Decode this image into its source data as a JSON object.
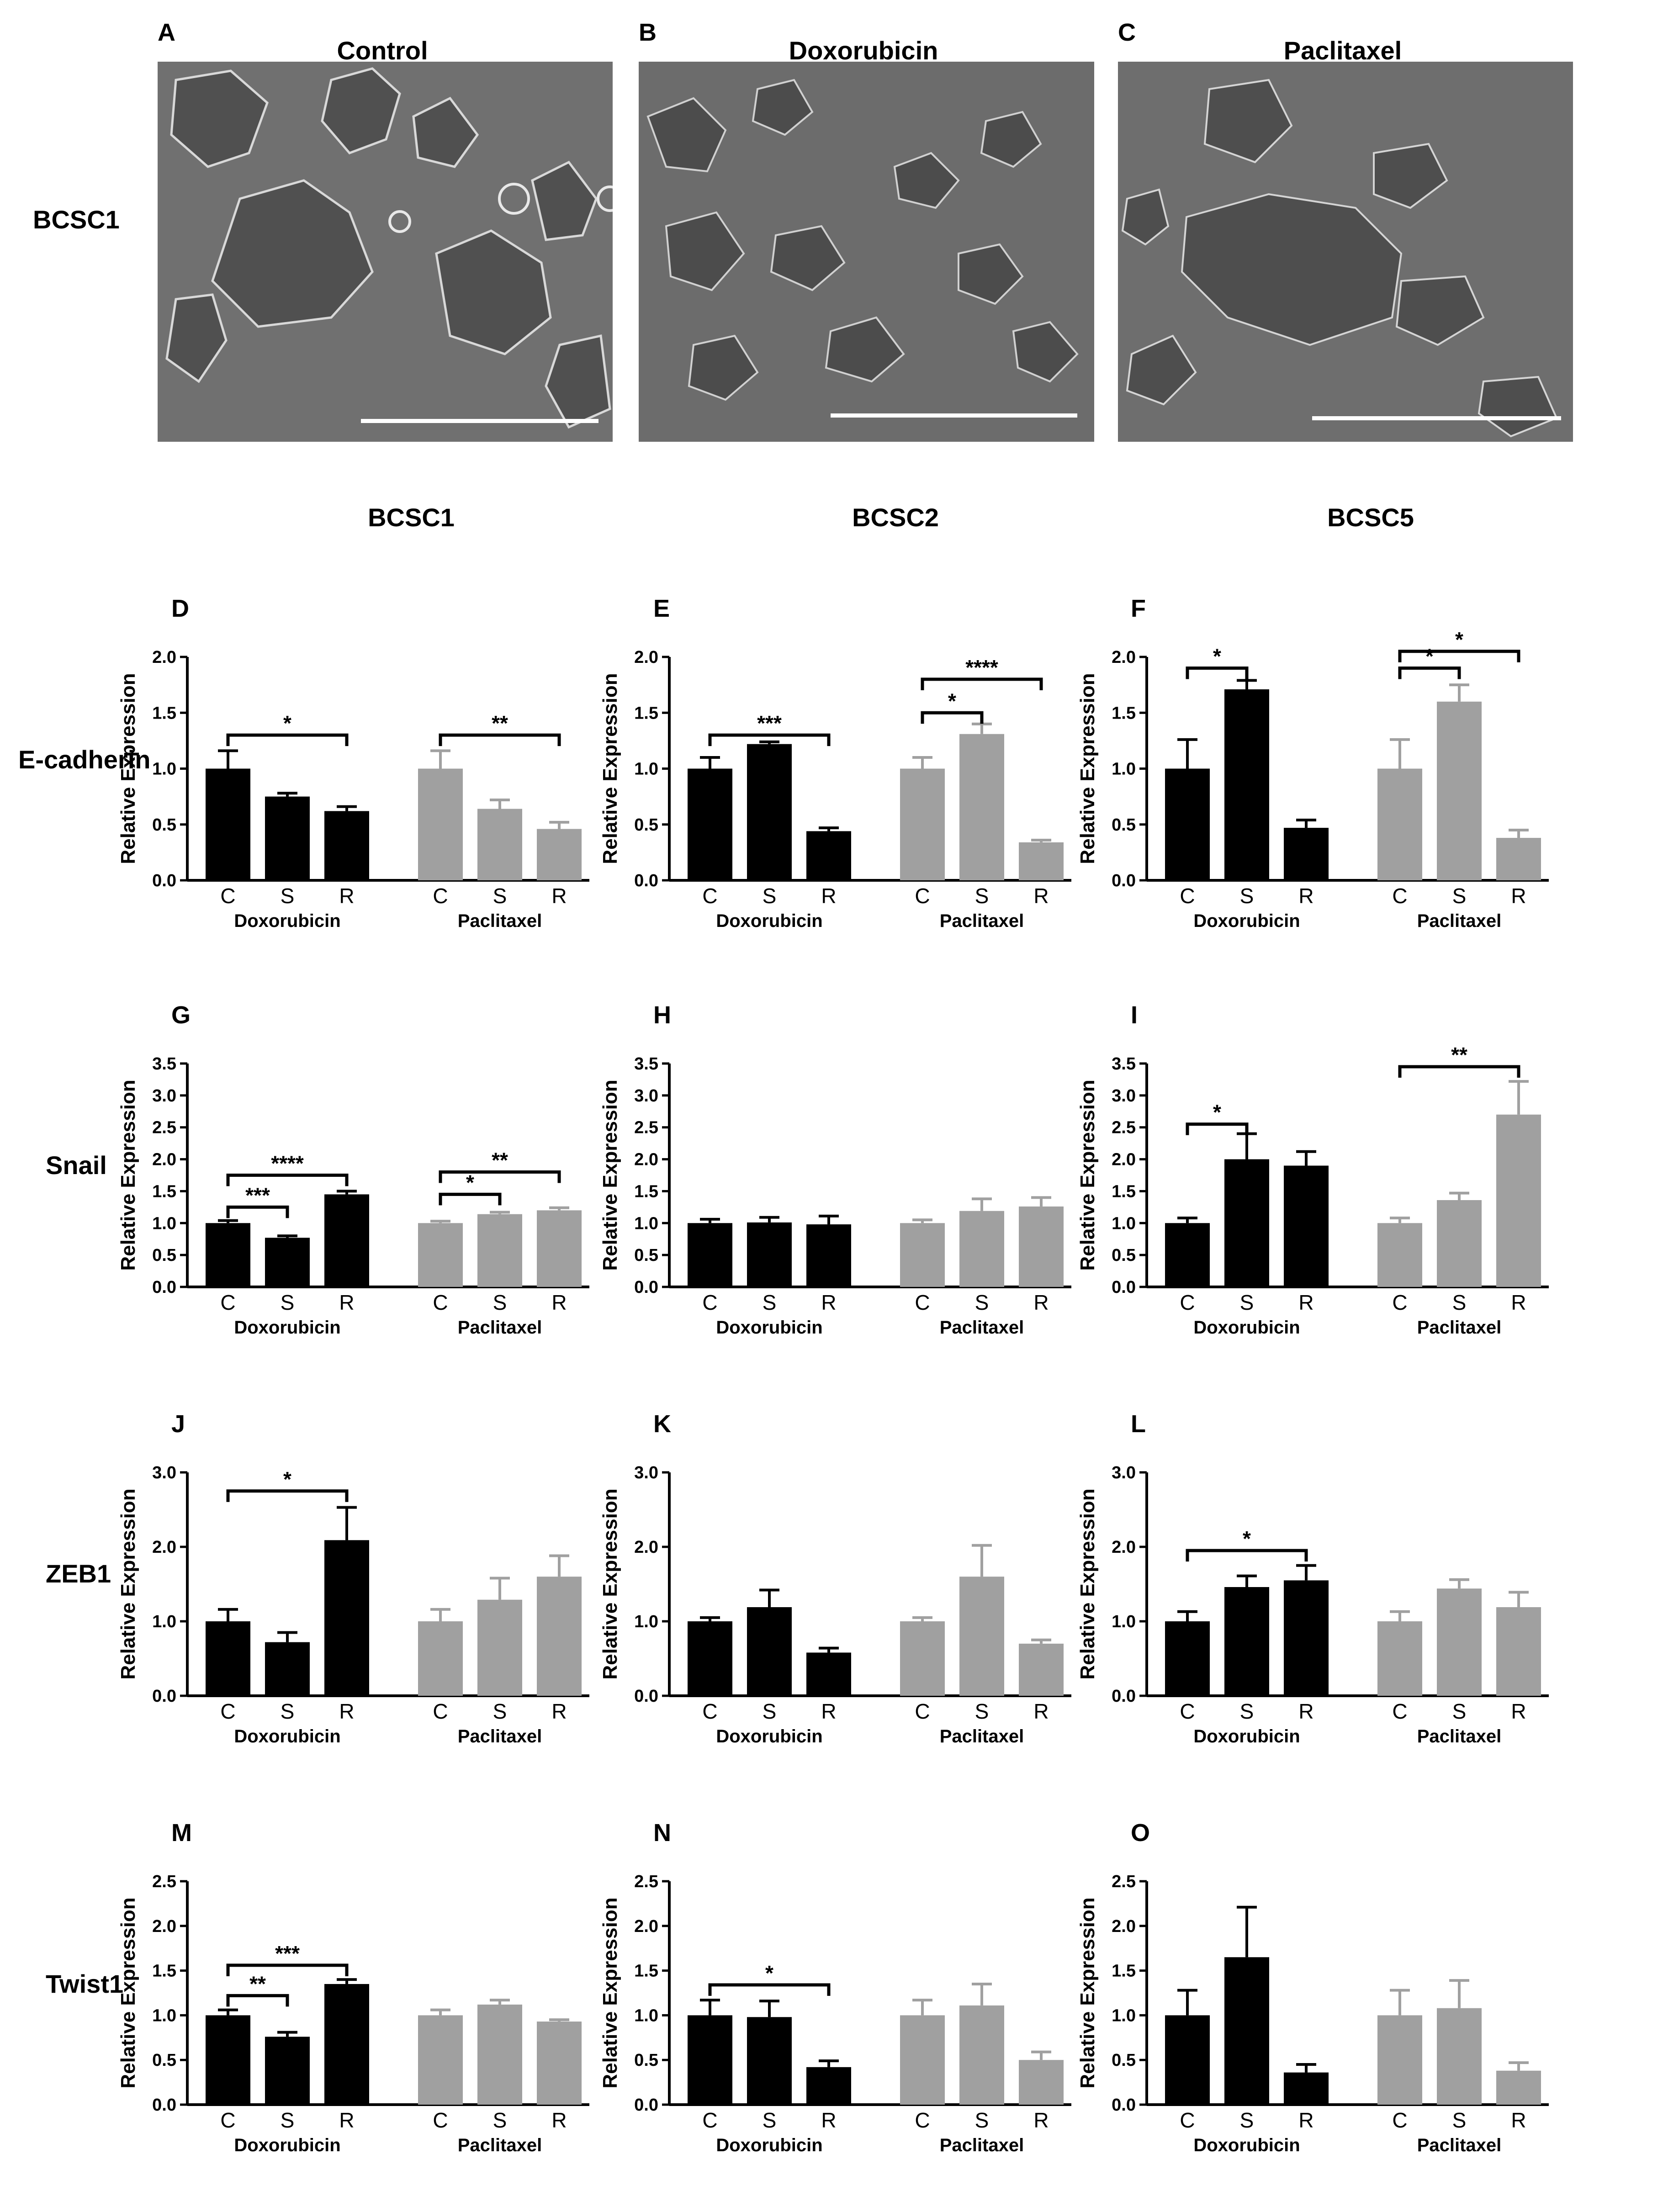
{
  "figure": {
    "micrographs": {
      "panels": [
        {
          "letter": "A",
          "title": "Control"
        },
        {
          "letter": "B",
          "title": "Doxorubicin"
        },
        {
          "letter": "C",
          "title": "Paclitaxel"
        }
      ],
      "row_label": "BCSC1"
    },
    "column_titles": [
      "BCSC1",
      "BCSC2",
      "BCSC5"
    ],
    "row_labels": [
      "E-cadherin",
      "Snail",
      "ZEB1",
      "Twist1"
    ]
  },
  "colors": {
    "doxorubicin": "#000000",
    "paclitaxel": "#a0a0a0",
    "micrograph_bg": "#6f6f6f",
    "scale_bar": "#ffffff"
  },
  "chart_data": [
    {
      "letter": "D",
      "type": "bar",
      "ylabel": "Relative Expression",
      "ylim": [
        0,
        2.0
      ],
      "yticks": [
        "0.0",
        "0.5",
        "1.0",
        "1.5",
        "2.0"
      ],
      "categories": [
        "C",
        "S",
        "R"
      ],
      "series": [
        {
          "name": "Doxorubicin",
          "values": [
            1.0,
            0.75,
            0.62
          ],
          "errors": [
            0.16,
            0.03,
            0.04
          ]
        },
        {
          "name": "Paclitaxel",
          "values": [
            1.0,
            0.64,
            0.46
          ],
          "errors": [
            0.16,
            0.08,
            0.06
          ]
        }
      ],
      "brackets": [
        {
          "series": 0,
          "from": 0,
          "to": 2,
          "label": "*",
          "level": 1.3
        },
        {
          "series": 1,
          "from": 0,
          "to": 2,
          "label": "**",
          "level": 1.3
        }
      ]
    },
    {
      "letter": "E",
      "type": "bar",
      "ylabel": "Relative Expression",
      "ylim": [
        0,
        2.0
      ],
      "yticks": [
        "0.0",
        "0.5",
        "1.0",
        "1.5",
        "2.0"
      ],
      "categories": [
        "C",
        "S",
        "R"
      ],
      "series": [
        {
          "name": "Doxorubicin",
          "values": [
            1.0,
            1.22,
            0.44
          ],
          "errors": [
            0.1,
            0.02,
            0.03
          ]
        },
        {
          "name": "Paclitaxel",
          "values": [
            1.0,
            1.31,
            0.34
          ],
          "errors": [
            0.1,
            0.09,
            0.02
          ]
        }
      ],
      "brackets": [
        {
          "series": 0,
          "from": 0,
          "to": 2,
          "label": "***",
          "level": 1.3
        },
        {
          "series": 1,
          "from": 0,
          "to": 1,
          "label": "*",
          "level": 1.5
        },
        {
          "series": 1,
          "from": 0,
          "to": 2,
          "label": "****",
          "level": 1.8
        }
      ]
    },
    {
      "letter": "F",
      "type": "bar",
      "ylabel": "Relative Expression",
      "ylim": [
        0,
        2.0
      ],
      "yticks": [
        "0.0",
        "0.5",
        "1.0",
        "1.5",
        "2.0"
      ],
      "categories": [
        "C",
        "S",
        "R"
      ],
      "series": [
        {
          "name": "Doxorubicin",
          "values": [
            1.0,
            1.71,
            0.47
          ],
          "errors": [
            0.26,
            0.08,
            0.07
          ]
        },
        {
          "name": "Paclitaxel",
          "values": [
            1.0,
            1.6,
            0.38
          ],
          "errors": [
            0.26,
            0.15,
            0.07
          ]
        }
      ],
      "brackets": [
        {
          "series": 0,
          "from": 0,
          "to": 1,
          "label": "*",
          "level": 1.9
        },
        {
          "series": 1,
          "from": 0,
          "to": 1,
          "label": "*",
          "level": 1.9
        },
        {
          "series": 1,
          "from": 0,
          "to": 2,
          "label": "*",
          "level": 2.05
        }
      ]
    },
    {
      "letter": "G",
      "type": "bar",
      "ylabel": "Relative Expression",
      "ylim": [
        0,
        3.5
      ],
      "yticks": [
        "0.0",
        "0.5",
        "1.0",
        "1.5",
        "2.0",
        "2.5",
        "3.0",
        "3.5"
      ],
      "categories": [
        "C",
        "S",
        "R"
      ],
      "series": [
        {
          "name": "Doxorubicin",
          "values": [
            1.0,
            0.77,
            1.45
          ],
          "errors": [
            0.04,
            0.03,
            0.05
          ]
        },
        {
          "name": "Paclitaxel",
          "values": [
            1.0,
            1.14,
            1.2
          ],
          "errors": [
            0.03,
            0.03,
            0.04
          ]
        }
      ],
      "brackets": [
        {
          "series": 0,
          "from": 0,
          "to": 1,
          "label": "***",
          "level": 1.25
        },
        {
          "series": 0,
          "from": 0,
          "to": 2,
          "label": "****",
          "level": 1.75
        },
        {
          "series": 1,
          "from": 0,
          "to": 1,
          "label": "*",
          "level": 1.45
        },
        {
          "series": 1,
          "from": 0,
          "to": 2,
          "label": "**",
          "level": 1.8
        }
      ]
    },
    {
      "letter": "H",
      "type": "bar",
      "ylabel": "Relative Expression",
      "ylim": [
        0,
        3.5
      ],
      "yticks": [
        "0.0",
        "0.5",
        "1.0",
        "1.5",
        "2.0",
        "2.5",
        "3.0",
        "3.5"
      ],
      "categories": [
        "C",
        "S",
        "R"
      ],
      "series": [
        {
          "name": "Doxorubicin",
          "values": [
            1.0,
            1.01,
            0.98
          ],
          "errors": [
            0.06,
            0.08,
            0.13
          ]
        },
        {
          "name": "Paclitaxel",
          "values": [
            1.0,
            1.19,
            1.26
          ],
          "errors": [
            0.05,
            0.19,
            0.14
          ]
        }
      ],
      "brackets": []
    },
    {
      "letter": "I",
      "type": "bar",
      "ylabel": "Relative Expression",
      "ylim": [
        0,
        3.5
      ],
      "yticks": [
        "0.0",
        "0.5",
        "1.0",
        "1.5",
        "2.0",
        "2.5",
        "3.0",
        "3.5"
      ],
      "categories": [
        "C",
        "S",
        "R"
      ],
      "series": [
        {
          "name": "Doxorubicin",
          "values": [
            1.0,
            2.0,
            1.9
          ],
          "errors": [
            0.08,
            0.4,
            0.22
          ]
        },
        {
          "name": "Paclitaxel",
          "values": [
            1.0,
            1.36,
            2.7
          ],
          "errors": [
            0.08,
            0.11,
            0.52
          ]
        }
      ],
      "brackets": [
        {
          "series": 0,
          "from": 0,
          "to": 1,
          "label": "*",
          "level": 2.55
        },
        {
          "series": 1,
          "from": 0,
          "to": 2,
          "label": "**",
          "level": 3.45
        }
      ]
    },
    {
      "letter": "J",
      "type": "bar",
      "ylabel": "Relative Expression",
      "ylim": [
        0,
        3.0
      ],
      "yticks": [
        "0.0",
        "1.0",
        "2.0",
        "3.0"
      ],
      "categories": [
        "C",
        "S",
        "R"
      ],
      "series": [
        {
          "name": "Doxorubicin",
          "values": [
            1.0,
            0.72,
            2.09
          ],
          "errors": [
            0.16,
            0.13,
            0.44
          ]
        },
        {
          "name": "Paclitaxel",
          "values": [
            1.0,
            1.29,
            1.6
          ],
          "errors": [
            0.16,
            0.29,
            0.28
          ]
        }
      ],
      "brackets": [
        {
          "series": 0,
          "from": 0,
          "to": 2,
          "label": "*",
          "level": 2.75
        }
      ]
    },
    {
      "letter": "K",
      "type": "bar",
      "ylabel": "Relative Expression",
      "ylim": [
        0,
        3.0
      ],
      "yticks": [
        "0.0",
        "1.0",
        "2.0",
        "3.0"
      ],
      "categories": [
        "C",
        "S",
        "R"
      ],
      "series": [
        {
          "name": "Doxorubicin",
          "values": [
            1.0,
            1.19,
            0.58
          ],
          "errors": [
            0.05,
            0.23,
            0.06
          ]
        },
        {
          "name": "Paclitaxel",
          "values": [
            1.0,
            1.6,
            0.7
          ],
          "errors": [
            0.05,
            0.42,
            0.05
          ]
        }
      ],
      "brackets": []
    },
    {
      "letter": "L",
      "type": "bar",
      "ylabel": "Relative Expression",
      "ylim": [
        0,
        3.0
      ],
      "yticks": [
        "0.0",
        "1.0",
        "2.0",
        "3.0"
      ],
      "categories": [
        "C",
        "S",
        "R"
      ],
      "series": [
        {
          "name": "Doxorubicin",
          "values": [
            1.0,
            1.46,
            1.55
          ],
          "errors": [
            0.13,
            0.15,
            0.2
          ]
        },
        {
          "name": "Paclitaxel",
          "values": [
            1.0,
            1.44,
            1.19
          ],
          "errors": [
            0.13,
            0.12,
            0.2
          ]
        }
      ],
      "brackets": [
        {
          "series": 0,
          "from": 0,
          "to": 2,
          "label": "*",
          "level": 1.95
        }
      ]
    },
    {
      "letter": "M",
      "type": "bar",
      "ylabel": "Relative Expression",
      "ylim": [
        0,
        2.5
      ],
      "yticks": [
        "0.0",
        "0.5",
        "1.0",
        "1.5",
        "2.0",
        "2.5"
      ],
      "categories": [
        "C",
        "S",
        "R"
      ],
      "series": [
        {
          "name": "Doxorubicin",
          "values": [
            1.0,
            0.76,
            1.35
          ],
          "errors": [
            0.06,
            0.05,
            0.05
          ]
        },
        {
          "name": "Paclitaxel",
          "values": [
            1.0,
            1.12,
            0.93
          ],
          "errors": [
            0.06,
            0.05,
            0.02
          ]
        }
      ],
      "brackets": [
        {
          "series": 0,
          "from": 0,
          "to": 1,
          "label": "**",
          "level": 1.22
        },
        {
          "series": 0,
          "from": 0,
          "to": 2,
          "label": "***",
          "level": 1.56
        }
      ]
    },
    {
      "letter": "N",
      "type": "bar",
      "ylabel": "Relative Expression",
      "ylim": [
        0,
        2.5
      ],
      "yticks": [
        "0.0",
        "0.5",
        "1.0",
        "1.5",
        "2.0",
        "2.5"
      ],
      "categories": [
        "C",
        "S",
        "R"
      ],
      "series": [
        {
          "name": "Doxorubicin",
          "values": [
            1.0,
            0.98,
            0.42
          ],
          "errors": [
            0.17,
            0.18,
            0.07
          ]
        },
        {
          "name": "Paclitaxel",
          "values": [
            1.0,
            1.11,
            0.5
          ],
          "errors": [
            0.17,
            0.24,
            0.09
          ]
        }
      ],
      "brackets": [
        {
          "series": 0,
          "from": 0,
          "to": 2,
          "label": "*",
          "level": 1.34
        }
      ]
    },
    {
      "letter": "O",
      "type": "bar",
      "ylabel": "Relative Expression",
      "ylim": [
        0,
        2.5
      ],
      "yticks": [
        "0.0",
        "0.5",
        "1.0",
        "1.5",
        "2.0",
        "2.5"
      ],
      "categories": [
        "C",
        "S",
        "R"
      ],
      "series": [
        {
          "name": "Doxorubicin",
          "values": [
            1.0,
            1.65,
            0.36
          ],
          "errors": [
            0.28,
            0.56,
            0.09
          ]
        },
        {
          "name": "Paclitaxel",
          "values": [
            1.0,
            1.08,
            0.38
          ],
          "errors": [
            0.28,
            0.31,
            0.09
          ]
        }
      ],
      "brackets": []
    }
  ]
}
